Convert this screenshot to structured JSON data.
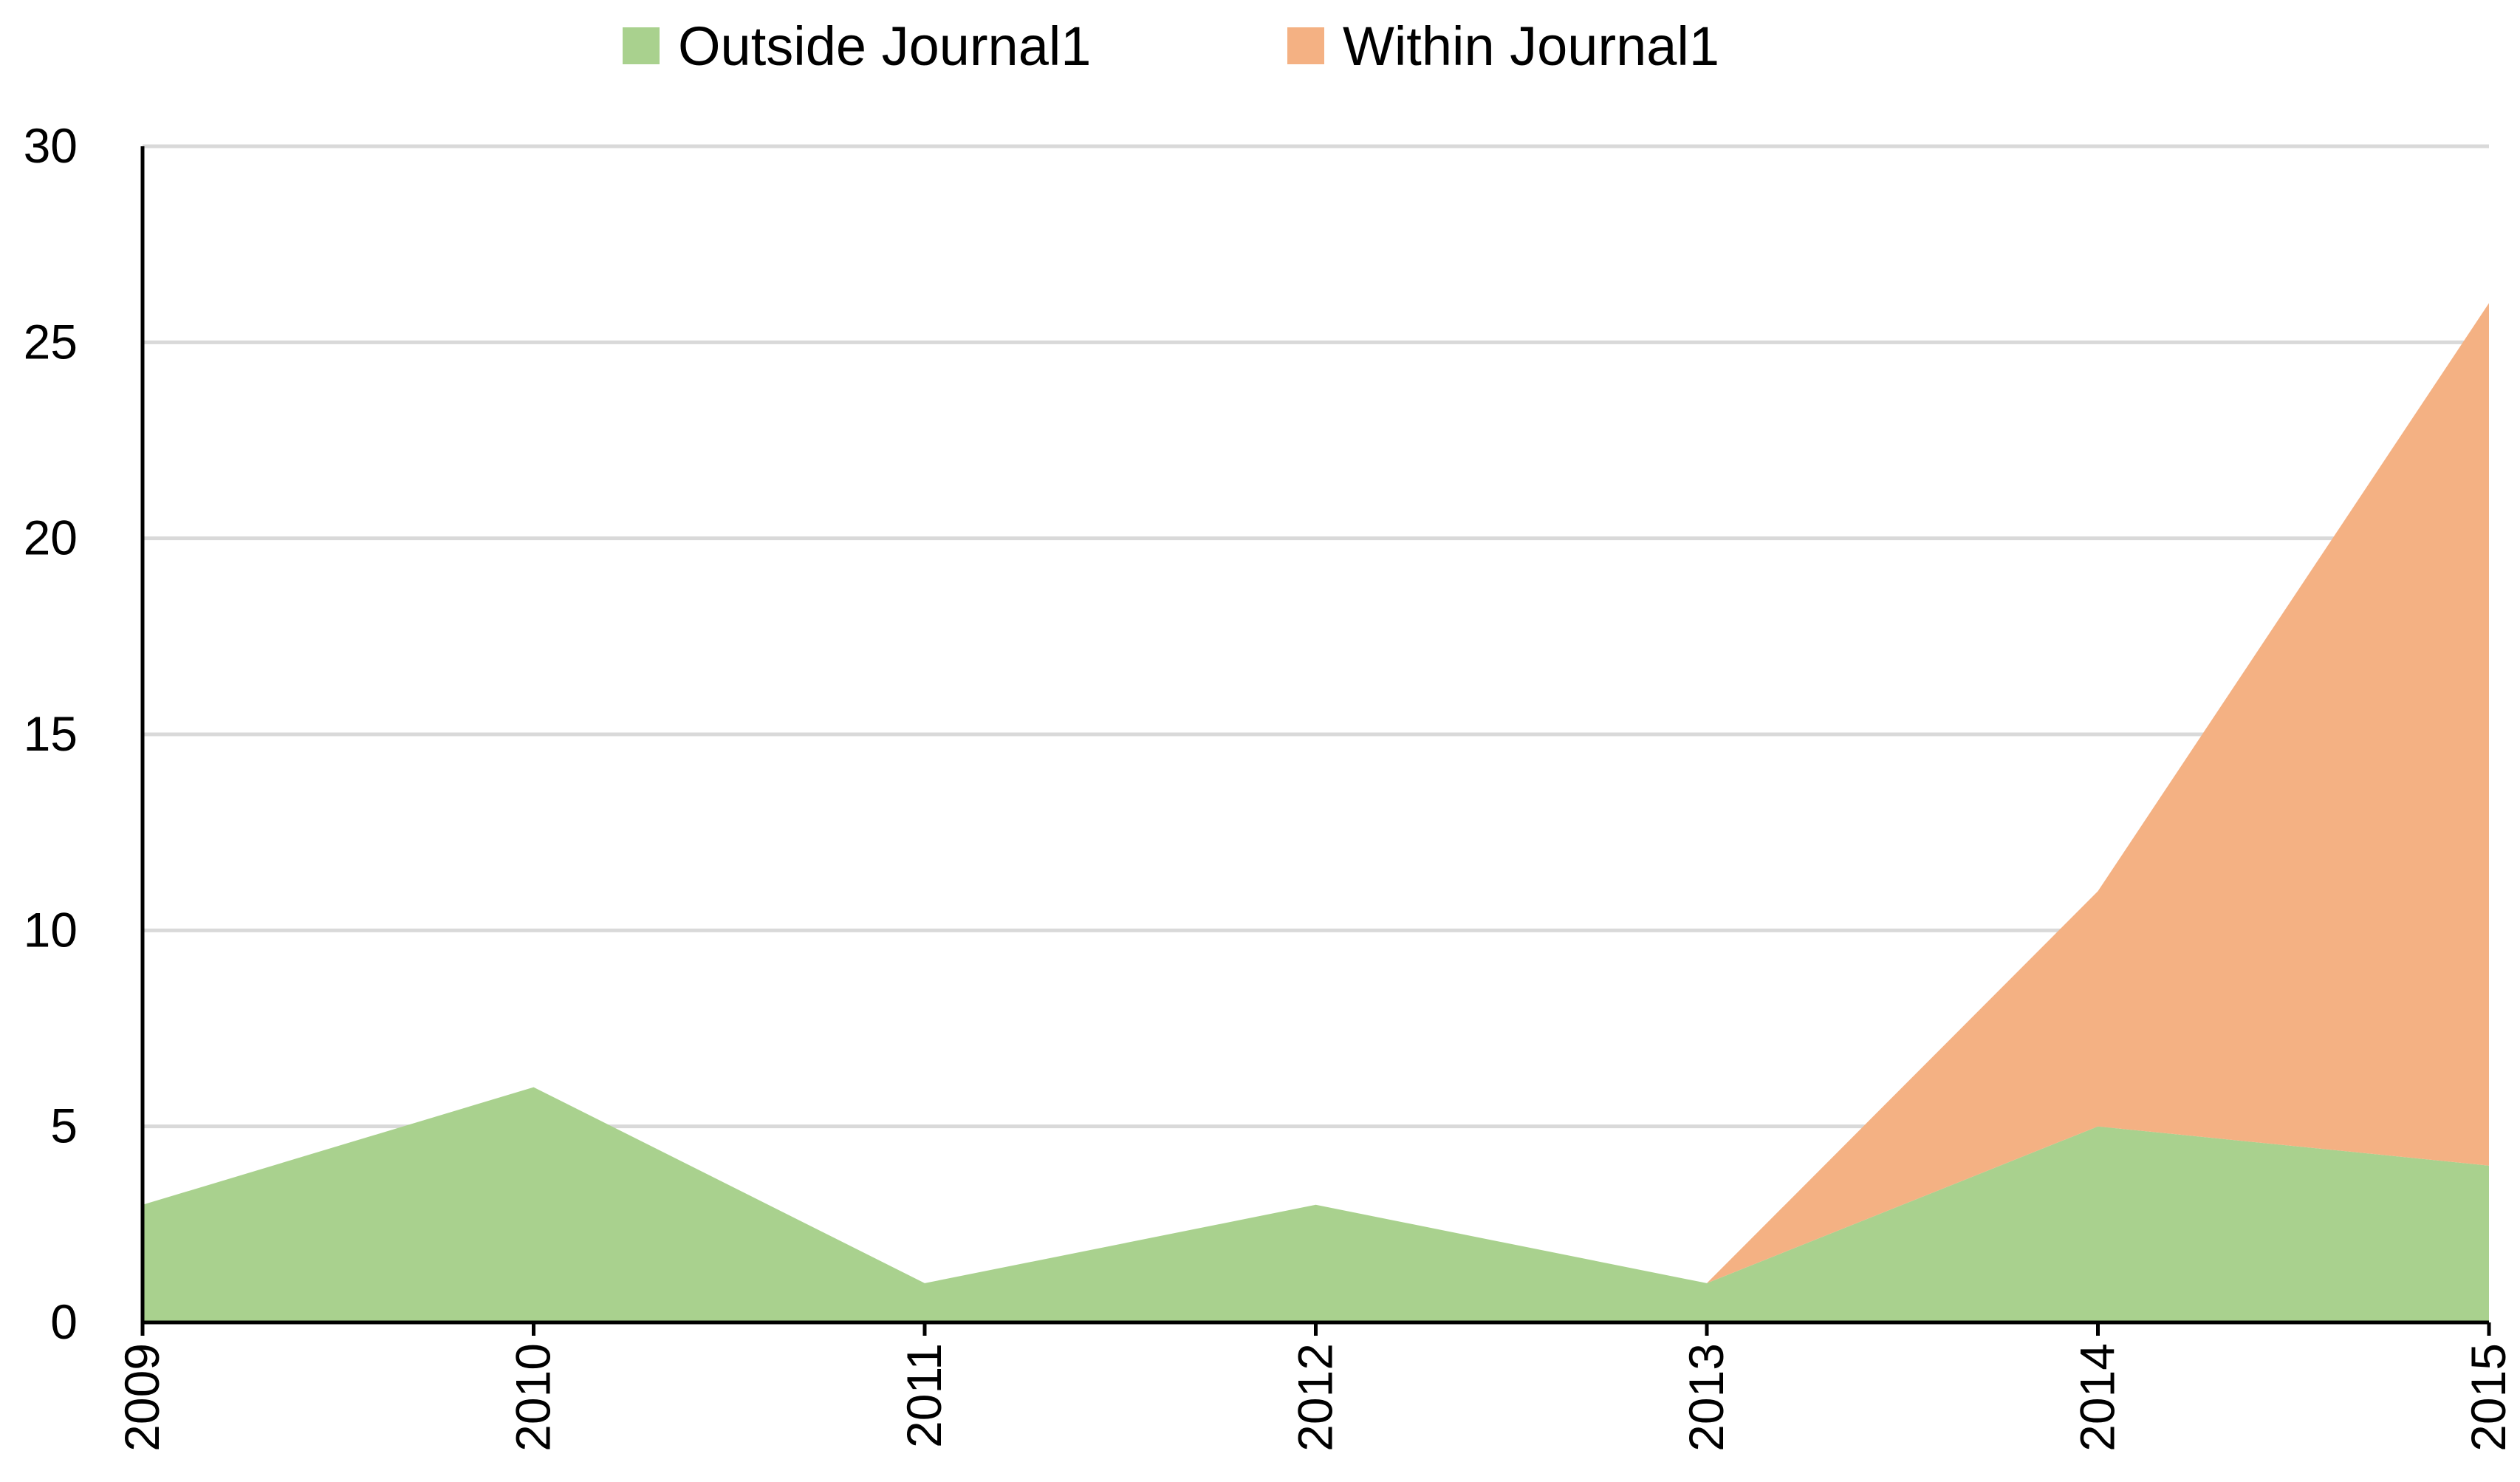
{
  "chart_data": {
    "type": "area",
    "stacked": true,
    "categories": [
      "2009",
      "2010",
      "2011",
      "2012",
      "2013",
      "2014",
      "2015"
    ],
    "series": [
      {
        "name": "Outside Journal1",
        "values": [
          3,
          6,
          1,
          3,
          1,
          5,
          4
        ],
        "color": "#a9d18e"
      },
      {
        "name": "Within Journal1",
        "values": [
          0,
          0,
          0,
          0,
          0,
          6,
          22
        ],
        "color": "#f4b183"
      }
    ],
    "yticks": [
      "0",
      "5",
      "10",
      "15",
      "20",
      "25",
      "30"
    ],
    "ylim": [
      0,
      30
    ],
    "grid": true,
    "legend_position": "top",
    "xtick_rotation": "vertical"
  }
}
